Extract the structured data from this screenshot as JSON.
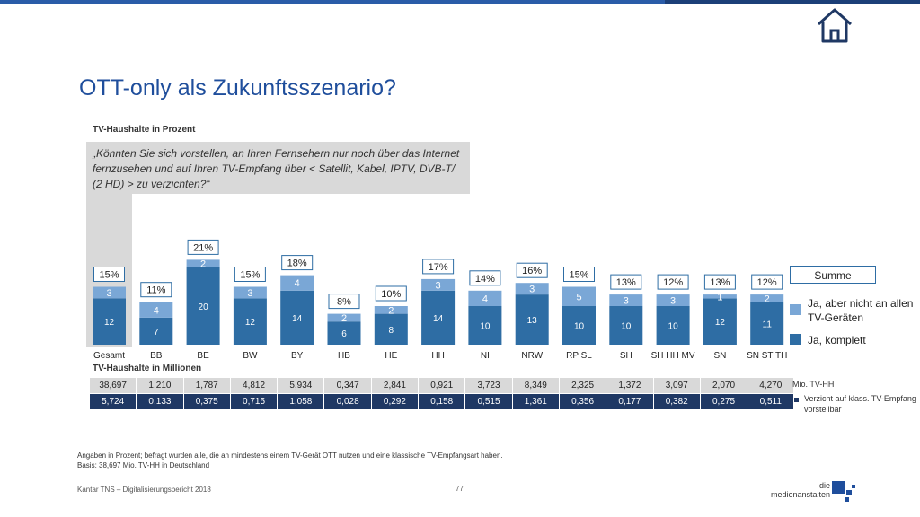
{
  "title": "OTT-only als Zukunftsszenario?",
  "subtitle": "TV-Haushalte in Prozent",
  "quote": "„Könnten Sie sich vorstellen, an Ihren Fernsehern nur noch über das Internet fernzusehen und auf Ihren TV-Empfang über < Satellit, Kabel, IPTV, DVB-T/ (2 HD) > zu verzichten?“",
  "chart_data": {
    "type": "bar",
    "stacked": true,
    "categories": [
      "Gesamt",
      "BB",
      "BE",
      "BW",
      "BY",
      "HB",
      "HE",
      "HH",
      "NI",
      "NRW",
      "RP SL",
      "SH",
      "SH HH MV",
      "SN",
      "SN ST TH"
    ],
    "series": [
      {
        "name": "Ja, komplett",
        "values": [
          12,
          7,
          20,
          12,
          14,
          6,
          8,
          14,
          10,
          13,
          10,
          10,
          10,
          12,
          11
        ],
        "color": "#2e6da4"
      },
      {
        "name": "Ja, aber nicht an allen TV-Geräten",
        "values": [
          3,
          4,
          2,
          3,
          4,
          2,
          2,
          3,
          4,
          3,
          5,
          3,
          3,
          1,
          2
        ],
        "color": "#7aa7d6"
      }
    ],
    "totals": [
      "15%",
      "11%",
      "21%",
      "15%",
      "18%",
      "8%",
      "10%",
      "17%",
      "14%",
      "16%",
      "15%",
      "13%",
      "12%",
      "13%",
      "12%"
    ],
    "legend_total_label": "Summe",
    "legend": "right",
    "grid": false
  },
  "table": {
    "title": "TV-Haushalte in Millionen",
    "mio_tvhh": [
      "38,697",
      "1,210",
      "1,787",
      "4,812",
      "5,934",
      "0,347",
      "2,841",
      "0,921",
      "3,723",
      "8,349",
      "2,325",
      "1,372",
      "3,097",
      "2,070",
      "4,270"
    ],
    "verzicht": [
      "5,724",
      "0,133",
      "0,375",
      "0,715",
      "1,058",
      "0,028",
      "0,292",
      "0,158",
      "0,515",
      "1,361",
      "0,356",
      "0,177",
      "0,382",
      "0,275",
      "0,511"
    ],
    "row1_label": "Mio. TV-HH",
    "row2_label": "Verzicht auf klass. TV-Empfang vorstellbar"
  },
  "footnote_1": "Angaben in Prozent; befragt wurden alle, die an mindestens einem TV-Gerät OTT nutzen und eine klassische TV-Empfangsart haben.",
  "footnote_2": "Basis: 38,697 Mio. TV-HH in Deutschland",
  "source": "Kantar TNS – Digitalisierungsbericht 2018",
  "page_number": "77",
  "logo_line1": "die",
  "logo_line2": "medienanstalten",
  "icons": {
    "home": "home-icon"
  }
}
